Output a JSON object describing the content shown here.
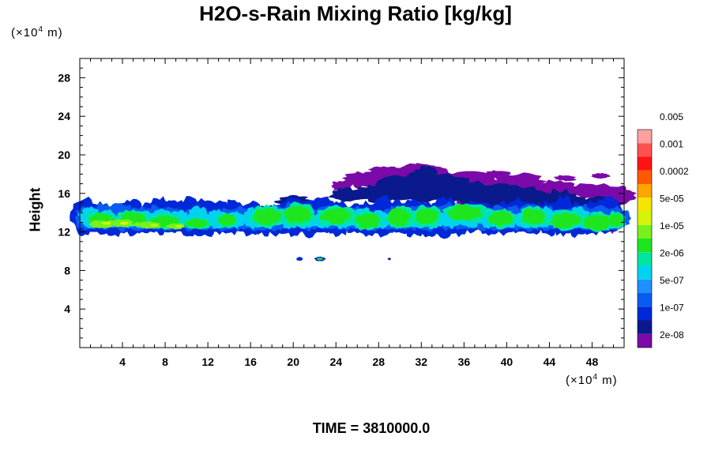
{
  "chart_data": {
    "type": "heatmap",
    "title": "H2O-s-Rain Mixing Ratio [kg/kg]",
    "ylabel": "Height",
    "x_unit": {
      "prefix": "(×10",
      "exp": "4",
      "suffix": " m)"
    },
    "y_unit": {
      "prefix": "(×10",
      "exp": "4",
      "suffix": " m)"
    },
    "xlim": [
      0,
      51
    ],
    "ylim": [
      0,
      30
    ],
    "x_ticks": [
      4,
      8,
      12,
      16,
      20,
      24,
      28,
      32,
      36,
      40,
      44,
      48
    ],
    "y_ticks": [
      4,
      8,
      12,
      16,
      20,
      24,
      28
    ],
    "colorbar": {
      "colors": [
        "#7b0aa8",
        "#0a1a8c",
        "#0028d8",
        "#0a5cf0",
        "#1e90ff",
        "#00d2f0",
        "#00e6a0",
        "#1ee61e",
        "#78f01e",
        "#d2f50a",
        "#f5e600",
        "#ffa500",
        "#ff5a00",
        "#ff1414",
        "#ff5050",
        "#ffa0a0"
      ],
      "labels": [
        "2e-08",
        "1e-07",
        "5e-07",
        "2e-06",
        "1e-05",
        "5e-05",
        "0.0002",
        "0.001",
        "0.005"
      ]
    },
    "features": [
      {
        "level": "2e-08",
        "x": [
          26,
          50
        ],
        "y": [
          15,
          19
        ],
        "note": "upper diffuse layer"
      },
      {
        "level": "1e-07",
        "x": [
          0,
          51
        ],
        "y": [
          11.5,
          16
        ],
        "note": "main cloud band"
      },
      {
        "level": "2e-06",
        "x": [
          0,
          51
        ],
        "y": [
          12,
          15.5
        ]
      },
      {
        "level": "1e-05",
        "x": [
          1,
          10
        ],
        "y": [
          12,
          13.5
        ]
      },
      {
        "level": "1e-07",
        "x": [
          20.5,
          23
        ],
        "y": [
          9,
          9.5
        ],
        "note": "isolated cells"
      }
    ]
  },
  "time_label": "TIME = 3810000.0"
}
